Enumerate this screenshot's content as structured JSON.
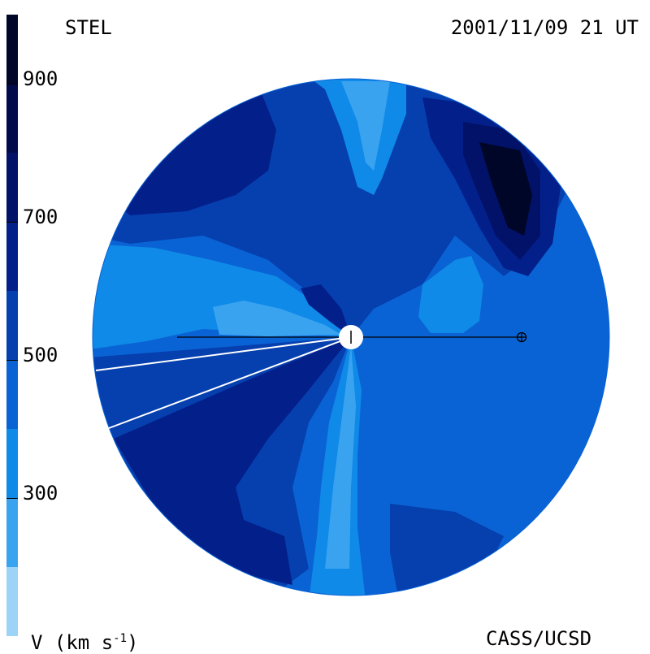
{
  "header": {
    "source": "STEL",
    "timestamp": "2001/11/09 21 UT"
  },
  "footer": {
    "unit_label_prefix": "V (km s",
    "unit_label_sup": "-1",
    "unit_label_suffix": ")",
    "credit": "CASS/UCSD"
  },
  "colorbar": {
    "ticks": [
      {
        "label": "900",
        "value": 900
      },
      {
        "label": "700",
        "value": 700
      },
      {
        "label": "500",
        "value": 500
      },
      {
        "label": "300",
        "value": 300
      }
    ],
    "range": [
      100,
      1000
    ],
    "bands": [
      {
        "from": 100,
        "to": 200,
        "color": "#9dd3f7"
      },
      {
        "from": 200,
        "to": 300,
        "color": "#3aa3f0"
      },
      {
        "from": 300,
        "to": 400,
        "color": "#0f8ae8"
      },
      {
        "from": 400,
        "to": 500,
        "color": "#0a63d4"
      },
      {
        "from": 500,
        "to": 600,
        "color": "#063fae"
      },
      {
        "from": 600,
        "to": 700,
        "color": "#031f8a"
      },
      {
        "from": 700,
        "to": 800,
        "color": "#011268"
      },
      {
        "from": 800,
        "to": 900,
        "color": "#010b4a"
      },
      {
        "from": 900,
        "to": 1000,
        "color": "#000628"
      }
    ]
  },
  "colors": {
    "background": "#0a63d4",
    "sun": "#ffffff",
    "line": "#000000"
  }
}
